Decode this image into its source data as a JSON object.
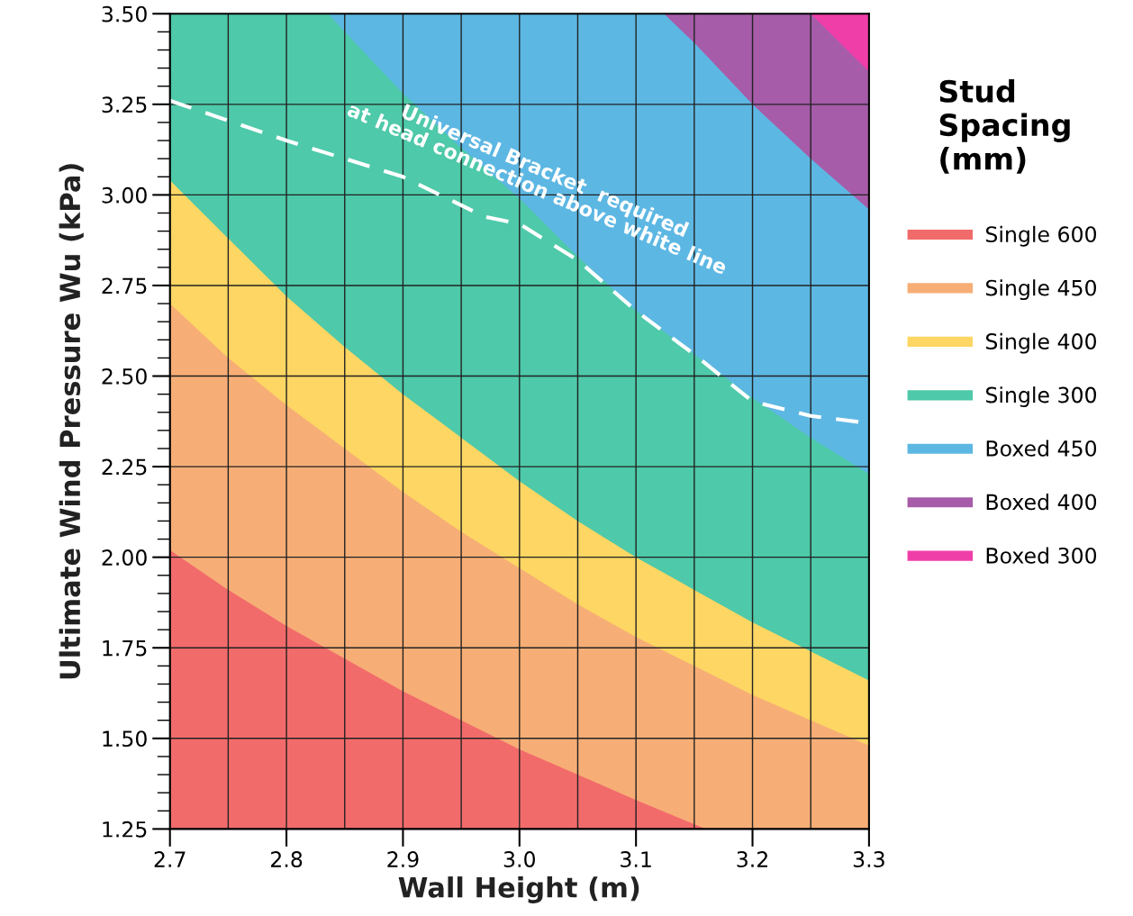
{
  "chart_data": {
    "type": "area",
    "xlabel": "Wall Height (m)",
    "ylabel": "Ultimate Wind Pressure Wu (kPa)",
    "legend_title": "Stud\nSpacing\n(mm)",
    "series": [
      {
        "name": "Single 600",
        "color": "#f26b6b",
        "x": [
          2.7,
          2.75,
          2.8,
          2.85,
          2.9,
          2.95,
          3.0,
          3.05,
          3.1,
          3.16,
          3.2,
          3.25,
          3.3
        ],
        "values": [
          2.02,
          1.91,
          1.81,
          1.72,
          1.63,
          1.55,
          1.47,
          1.4,
          1.33,
          1.25,
          1.25,
          1.25,
          1.25
        ]
      },
      {
        "name": "Single 450",
        "color": "#f7ae76",
        "x": [
          2.7,
          2.75,
          2.8,
          2.85,
          2.9,
          2.95,
          3.0,
          3.05,
          3.1,
          3.15,
          3.2,
          3.25,
          3.3
        ],
        "values": [
          2.7,
          2.55,
          2.42,
          2.3,
          2.18,
          2.07,
          1.97,
          1.87,
          1.78,
          1.7,
          1.62,
          1.55,
          1.48
        ]
      },
      {
        "name": "Single 400",
        "color": "#fdd663",
        "x": [
          2.7,
          2.75,
          2.8,
          2.85,
          2.9,
          2.95,
          3.0,
          3.05,
          3.1,
          3.15,
          3.2,
          3.25,
          3.3
        ],
        "values": [
          3.04,
          2.88,
          2.72,
          2.58,
          2.45,
          2.33,
          2.21,
          2.1,
          2.0,
          1.91,
          1.82,
          1.74,
          1.66
        ]
      },
      {
        "name": "Single 300",
        "color": "#4ec9a9",
        "x": [
          2.7,
          2.8,
          2.836,
          2.85,
          2.9,
          2.95,
          3.0,
          3.05,
          3.1,
          3.15,
          3.2,
          3.25,
          3.3
        ],
        "values": [
          3.5,
          3.5,
          3.5,
          3.45,
          3.28,
          3.13,
          2.99,
          2.83,
          2.68,
          2.56,
          2.44,
          2.33,
          2.23
        ]
      },
      {
        "name": "Boxed 450",
        "color": "#5db7e3",
        "x": [
          2.836,
          3.124,
          3.15,
          3.2,
          3.25,
          3.3
        ],
        "values": [
          3.5,
          3.5,
          3.42,
          3.25,
          3.1,
          2.96
        ]
      },
      {
        "name": "Boxed 400",
        "color": "#a65ca9",
        "x": [
          3.124,
          3.25,
          3.3
        ],
        "values": [
          3.5,
          3.5,
          3.34
        ]
      },
      {
        "name": "Boxed 300",
        "color": "#f03ea9",
        "x": [
          3.25,
          3.3
        ],
        "values": [
          3.5,
          3.5
        ]
      },
      {
        "type": "line",
        "color": "#ffffff",
        "line_style": "dashed",
        "x": [
          2.7,
          2.8,
          2.9,
          2.97,
          3.0,
          3.05,
          3.1,
          3.15,
          3.2,
          3.25,
          3.3
        ],
        "values": [
          3.26,
          3.15,
          3.05,
          2.94,
          2.92,
          2.82,
          2.68,
          2.56,
          2.43,
          2.39,
          2.37
        ]
      }
    ],
    "annotations": [
      "Universal Bracket  required\nat head connection above white line"
    ],
    "xlim": [
      2.7,
      3.3
    ],
    "xticks": [
      2.7,
      {
        "value": 2.75,
        "label": null
      },
      2.8,
      {
        "value": 2.85,
        "label": null
      },
      2.9,
      {
        "value": 2.95,
        "label": null
      },
      {
        "value": 3.0,
        "label": "3.0"
      },
      {
        "value": 3.05,
        "label": null
      },
      3.1,
      {
        "value": 3.15,
        "label": null
      },
      3.2,
      {
        "value": 3.25,
        "label": null
      },
      3.3
    ],
    "ylim": [
      1.25,
      3.5
    ],
    "yticks": [
      1.25,
      {
        "value": 1.3,
        "label": null
      },
      {
        "value": 1.35,
        "label": null
      },
      {
        "value": 1.4,
        "label": null
      },
      {
        "value": 1.45,
        "label": null
      },
      {
        "value": 1.5,
        "label": "1.50"
      },
      {
        "value": 1.55,
        "label": null
      },
      {
        "value": 1.6,
        "label": null
      },
      {
        "value": 1.65,
        "label": null
      },
      {
        "value": 1.7,
        "label": null
      },
      1.75,
      {
        "value": 1.8,
        "label": null
      },
      {
        "value": 1.85,
        "label": null
      },
      {
        "value": 1.9,
        "label": null
      },
      {
        "value": 1.95,
        "label": null
      },
      {
        "value": 2.0,
        "label": "2.00"
      },
      {
        "value": 2.05,
        "label": null
      },
      {
        "value": 2.1,
        "label": null
      },
      {
        "value": 2.15,
        "label": null
      },
      {
        "value": 2.2,
        "label": null
      },
      2.25,
      {
        "value": 2.3,
        "label": null
      },
      {
        "value": 2.35,
        "label": null
      },
      {
        "value": 2.4,
        "label": null
      },
      {
        "value": 2.45,
        "label": null
      },
      {
        "value": 2.5,
        "label": "2.50"
      },
      {
        "value": 2.55,
        "label": null
      },
      {
        "value": 2.6,
        "label": null
      },
      {
        "value": 2.65,
        "label": null
      },
      {
        "value": 2.7,
        "label": null
      },
      2.75,
      {
        "value": 2.8,
        "label": null
      },
      {
        "value": 2.85,
        "label": null
      },
      {
        "value": 2.9,
        "label": null
      },
      {
        "value": 2.95,
        "label": null
      },
      {
        "value": 3.0,
        "label": "3.00"
      },
      {
        "value": 3.05,
        "label": null
      },
      {
        "value": 3.1,
        "label": null
      },
      {
        "value": 3.15,
        "label": null
      },
      {
        "value": 3.2,
        "label": null
      },
      3.25,
      {
        "value": 3.3,
        "label": null
      },
      {
        "value": 3.35,
        "label": null
      },
      {
        "value": 3.4,
        "label": null
      },
      {
        "value": 3.45,
        "label": null
      },
      {
        "value": 3.5,
        "label": "3.50"
      }
    ],
    "grid": true,
    "legend": "right"
  }
}
